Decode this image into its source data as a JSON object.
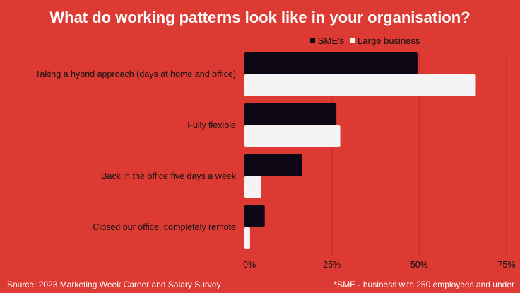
{
  "colors": {
    "background": "#dc3a33",
    "sme": "#0d0614",
    "large": "#f5f3f3",
    "grid": "#c12e28"
  },
  "chart_data": {
    "type": "bar",
    "orientation": "horizontal",
    "title": "What do working patterns look like in your organisation?",
    "categories": [
      "Taking a hybrid approach (days at home and office)",
      "Fully flexible",
      "Back in the office five days a week",
      "Closed our office, completely remote"
    ],
    "series": [
      {
        "name": "SME's",
        "values": [
          49.5,
          26.3,
          16.5,
          5.8
        ]
      },
      {
        "name": "Large business",
        "values": [
          66.2,
          27.4,
          4.8,
          1.6
        ]
      }
    ],
    "xlim": [
      0,
      75
    ],
    "x_ticks": [
      0,
      25,
      50,
      75
    ],
    "x_tick_labels": [
      "0%",
      "25%",
      "50%",
      "75%"
    ],
    "legend_position": "top-right",
    "grid": "vertical"
  },
  "footer": {
    "source": "Source: 2023 Marketing Week Career and Salary Survey",
    "note": "*SME - business with 250 employees and under"
  }
}
